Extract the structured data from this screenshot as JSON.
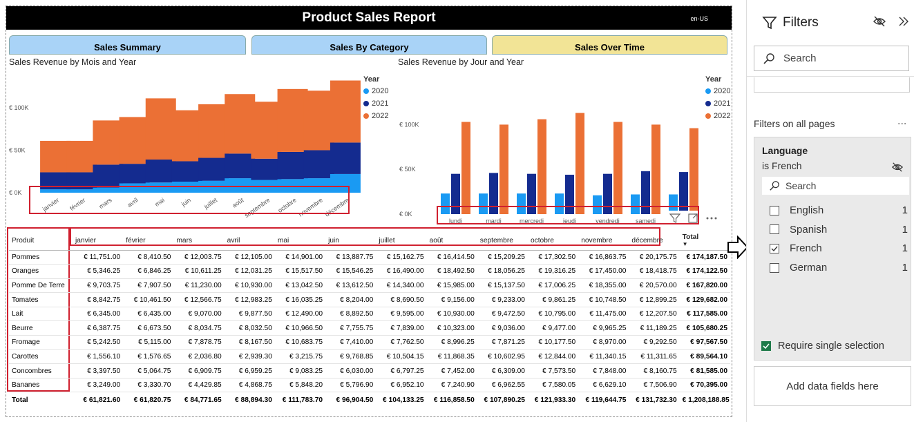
{
  "report": {
    "title": "Product Sales Report",
    "locale": "en-US"
  },
  "tabs": [
    {
      "label": "Sales Summary",
      "active": false
    },
    {
      "label": "Sales By Category",
      "active": false
    },
    {
      "label": "Sales Over Time",
      "active": true
    }
  ],
  "colors": {
    "y2020": "#1a9af3",
    "y2021": "#142b8f",
    "y2022": "#eb7035",
    "tab": "#a9d3f7",
    "tab_active": "#f2e496",
    "highlight": "#d0202f"
  },
  "chart_data": [
    {
      "type": "bar",
      "stacked": true,
      "title": "Sales Revenue by Mois and Year",
      "legend_title": "Year",
      "legend_position": "top-right",
      "categories": [
        "janvier",
        "février",
        "mars",
        "avril",
        "mai",
        "juin",
        "juillet",
        "août",
        "septembre",
        "octobre",
        "novembre",
        "décembre"
      ],
      "series": [
        {
          "name": "2020",
          "values": [
            4000,
            4000,
            6000,
            11000,
            12000,
            13000,
            14000,
            17000,
            15000,
            16000,
            17000,
            22000
          ]
        },
        {
          "name": "2021",
          "values": [
            20000,
            20000,
            27000,
            23000,
            27000,
            24000,
            27000,
            29000,
            25000,
            32000,
            33000,
            37000
          ]
        },
        {
          "name": "2022",
          "values": [
            37000,
            37000,
            52000,
            55000,
            72000,
            60000,
            63000,
            70000,
            67000,
            74000,
            70000,
            73000
          ]
        }
      ],
      "yticks": [
        "€ 0K",
        "€ 50K",
        "€ 100K"
      ],
      "ylim": [
        0,
        130000
      ],
      "grid": false
    },
    {
      "type": "bar",
      "stacked": false,
      "title": "Sales Revenue by Jour and Year",
      "legend_title": "Year",
      "legend_position": "top-right",
      "categories": [
        "lundi",
        "mardi",
        "mercredi",
        "jeudi",
        "vendredi",
        "samedi",
        "dimanche"
      ],
      "series": [
        {
          "name": "2020",
          "values": [
            23000,
            23000,
            23000,
            23000,
            21000,
            22000,
            22000
          ]
        },
        {
          "name": "2021",
          "values": [
            45000,
            46000,
            45000,
            44000,
            45000,
            48000,
            47000
          ]
        },
        {
          "name": "2022",
          "values": [
            103000,
            100000,
            106000,
            113000,
            103000,
            100000,
            96000
          ]
        }
      ],
      "yticks": [
        "€ 0K",
        "€ 50K",
        "€ 100K"
      ],
      "ylim": [
        0,
        125000
      ],
      "grid": false
    }
  ],
  "matrix": {
    "row_header": "Produit",
    "columns": [
      "janvier",
      "février",
      "mars",
      "avril",
      "mai",
      "juin",
      "juillet",
      "août",
      "septembre",
      "octobre",
      "novembre",
      "décembre",
      "Total"
    ],
    "rows": [
      {
        "name": "Pommes",
        "values": [
          "€ 11,751.00",
          "€ 8,410.50",
          "€ 12,003.75",
          "€ 12,105.00",
          "€ 14,901.00",
          "€ 13,887.75",
          "€ 15,162.75",
          "€ 16,414.50",
          "€ 15,209.25",
          "€ 17,302.50",
          "€ 16,863.75",
          "€ 20,175.75",
          "€ 174,187.50"
        ]
      },
      {
        "name": "Oranges",
        "values": [
          "€ 5,346.25",
          "€ 6,846.25",
          "€ 10,611.25",
          "€ 12,031.25",
          "€ 15,517.50",
          "€ 15,546.25",
          "€ 16,490.00",
          "€ 18,492.50",
          "€ 18,056.25",
          "€ 19,316.25",
          "€ 17,450.00",
          "€ 18,418.75",
          "€ 174,122.50"
        ]
      },
      {
        "name": "Pomme De Terre",
        "values": [
          "€ 9,703.75",
          "€ 7,907.50",
          "€ 11,230.00",
          "€ 10,930.00",
          "€ 13,042.50",
          "€ 13,612.50",
          "€ 14,340.00",
          "€ 15,985.00",
          "€ 15,137.50",
          "€ 17,006.25",
          "€ 18,355.00",
          "€ 20,570.00",
          "€ 167,820.00"
        ]
      },
      {
        "name": "Tomates",
        "values": [
          "€ 8,842.75",
          "€ 10,461.50",
          "€ 12,566.75",
          "€ 12,983.25",
          "€ 16,035.25",
          "€ 8,204.00",
          "€ 8,690.50",
          "€ 9,156.00",
          "€ 9,233.00",
          "€ 9,861.25",
          "€ 10,748.50",
          "€ 12,899.25",
          "€ 129,682.00"
        ]
      },
      {
        "name": "Lait",
        "values": [
          "€ 6,345.00",
          "€ 6,435.00",
          "€ 9,070.00",
          "€ 9,877.50",
          "€ 12,490.00",
          "€ 8,892.50",
          "€ 9,595.00",
          "€ 10,930.00",
          "€ 9,472.50",
          "€ 10,795.00",
          "€ 11,475.00",
          "€ 12,207.50",
          "€ 117,585.00"
        ]
      },
      {
        "name": "Beurre",
        "values": [
          "€ 6,387.75",
          "€ 6,673.50",
          "€ 8,034.75",
          "€ 8,032.50",
          "€ 10,966.50",
          "€ 7,755.75",
          "€ 7,839.00",
          "€ 10,323.00",
          "€ 9,036.00",
          "€ 9,477.00",
          "€ 9,965.25",
          "€ 11,189.25",
          "€ 105,680.25"
        ]
      },
      {
        "name": "Fromage",
        "values": [
          "€ 5,242.50",
          "€ 5,115.00",
          "€ 7,878.75",
          "€ 8,167.50",
          "€ 10,683.75",
          "€ 7,410.00",
          "€ 7,762.50",
          "€ 8,996.25",
          "€ 7,871.25",
          "€ 10,177.50",
          "€ 8,970.00",
          "€ 9,292.50",
          "€ 97,567.50"
        ]
      },
      {
        "name": "Carottes",
        "values": [
          "€ 1,556.10",
          "€ 1,576.65",
          "€ 2,036.80",
          "€ 2,939.30",
          "€ 3,215.75",
          "€ 9,768.85",
          "€ 10,504.15",
          "€ 11,868.35",
          "€ 10,602.95",
          "€ 12,844.00",
          "€ 11,340.15",
          "€ 11,311.65",
          "€ 89,564.10"
        ]
      },
      {
        "name": "Concombres",
        "values": [
          "€ 3,397.50",
          "€ 5,064.75",
          "€ 6,909.75",
          "€ 6,959.25",
          "€ 9,083.25",
          "€ 6,030.00",
          "€ 6,797.25",
          "€ 7,452.00",
          "€ 6,309.00",
          "€ 7,573.50",
          "€ 7,848.00",
          "€ 8,160.75",
          "€ 81,585.00"
        ]
      },
      {
        "name": "Bananes",
        "values": [
          "€ 3,249.00",
          "€ 3,330.70",
          "€ 4,429.85",
          "€ 4,868.75",
          "€ 5,848.20",
          "€ 5,796.90",
          "€ 6,952.10",
          "€ 7,240.90",
          "€ 6,962.55",
          "€ 7,580.05",
          "€ 6,629.10",
          "€ 7,506.90",
          "€ 70,395.00"
        ]
      }
    ],
    "total": {
      "name": "Total",
      "values": [
        "€ 61,821.60",
        "€ 61,820.75",
        "€ 84,771.65",
        "€ 88,894.30",
        "€ 111,783.70",
        "€ 96,904.50",
        "€ 104,133.25",
        "€ 116,858.50",
        "€ 107,890.25",
        "€ 121,933.30",
        "€ 119,644.75",
        "€ 131,732.30",
        "€ 1,208,188.85"
      ]
    }
  },
  "filters": {
    "title": "Filters",
    "search_placeholder": "Search",
    "section": "Filters on all pages",
    "more": "...",
    "card": {
      "field": "Language",
      "condition": "is French",
      "search_placeholder": "Search",
      "options": [
        {
          "label": "English",
          "count": "1",
          "checked": false
        },
        {
          "label": "Spanish",
          "count": "1",
          "checked": false
        },
        {
          "label": "French",
          "count": "1",
          "checked": true
        },
        {
          "label": "German",
          "count": "1",
          "checked": false
        }
      ],
      "require_single": "Require single selection"
    },
    "add_fields": "Add data fields here"
  }
}
